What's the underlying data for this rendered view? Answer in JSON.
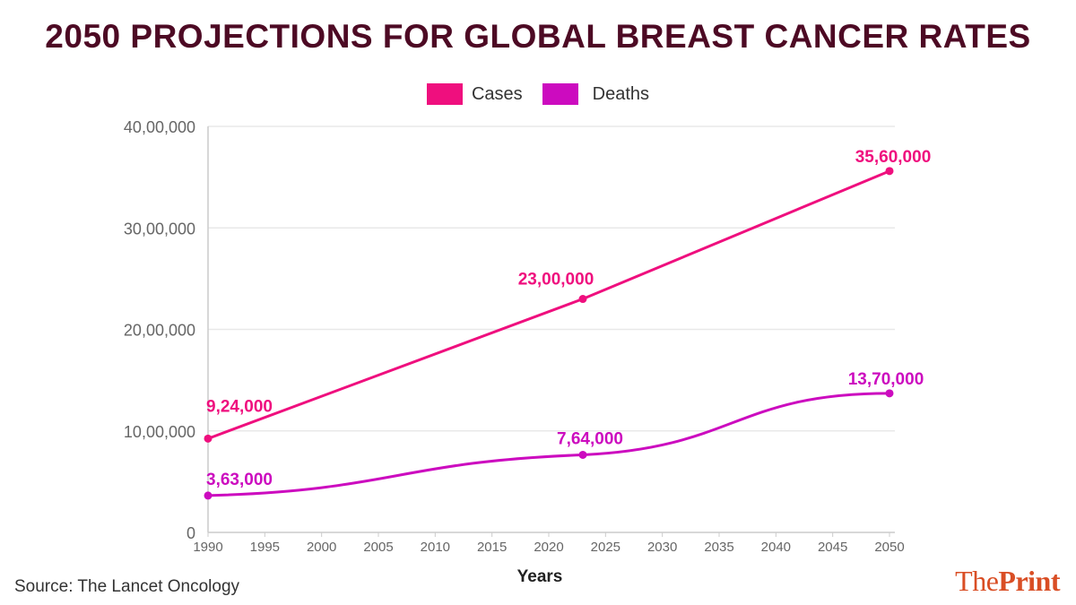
{
  "header": {
    "title": "2050 PROJECTIONS FOR GLOBAL BREAST CANCER RATES"
  },
  "footer": {
    "source": "Source: The Lancet Oncology",
    "brand_the": "The",
    "brand_print": "Print"
  },
  "colors": {
    "cases": "#ef0f7e",
    "deaths": "#cc0bbf",
    "grid": "#e8e8e8",
    "axis_text": "#666666",
    "title": "#4d0a24",
    "brand": "#d94e25"
  },
  "chart_data": {
    "type": "line",
    "title": "2050 PROJECTIONS FOR GLOBAL BREAST CANCER RATES",
    "xlabel": "Years",
    "ylabel": "",
    "xlim": [
      1990,
      2050
    ],
    "ylim": [
      0,
      4000000
    ],
    "x_ticks": [
      1990,
      1995,
      2000,
      2005,
      2010,
      2015,
      2020,
      2025,
      2030,
      2035,
      2040,
      2045,
      2050
    ],
    "x_tick_labels": [
      "1990",
      "1995",
      "2000",
      "2005",
      "2010",
      "2015",
      "2020",
      "2025",
      "2030",
      "2035",
      "2040",
      "2045",
      "2050"
    ],
    "y_ticks": [
      0,
      1000000,
      2000000,
      3000000,
      4000000
    ],
    "y_tick_labels": [
      "0",
      "10,00,000",
      "20,00,000",
      "30,00,000",
      "40,00,000"
    ],
    "grid": true,
    "legend_position": "top-center",
    "series": [
      {
        "name": "Cases",
        "color": "#ef0f7e",
        "x": [
          1990,
          2023,
          2050
        ],
        "values": [
          924000,
          2300000,
          3560000
        ],
        "labels": [
          "9,24,000",
          "23,00,000",
          "35,60,000"
        ]
      },
      {
        "name": "Deaths",
        "color": "#cc0bbf",
        "x": [
          1990,
          2023,
          2050
        ],
        "values": [
          363000,
          764000,
          1370000
        ],
        "labels": [
          "3,63,000",
          "7,64,000",
          "13,70,000"
        ]
      }
    ]
  }
}
